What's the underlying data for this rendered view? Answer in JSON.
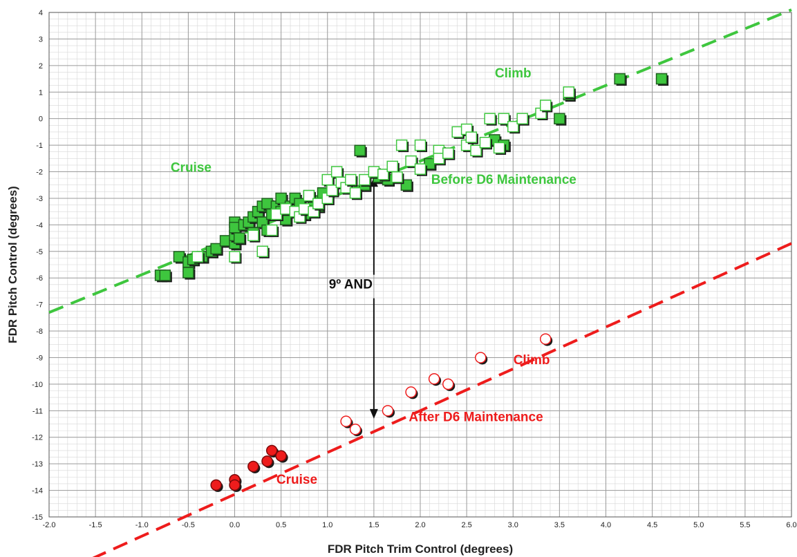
{
  "chart_data": {
    "type": "scatter",
    "title": "",
    "xlabel": "FDR Pitch Trim Control (degrees)",
    "ylabel": "FDR Pitch Control (degrees)",
    "xlim": [
      -2.0,
      6.0
    ],
    "ylim": [
      -15,
      4
    ],
    "x_major_step": 0.5,
    "x_minor_step": 0.1,
    "y_major_step": 1,
    "y_minor_step": 0.25,
    "x_tick_labels": [
      "-2.0",
      "-1.5",
      "-1.0",
      "-0.5",
      "0.0",
      "0.5",
      "1.0",
      "1.5",
      "2.0",
      "2.5",
      "3.0",
      "3.5",
      "4.0",
      "4.5",
      "5.0",
      "5.5",
      "6.0"
    ],
    "y_tick_labels": [
      "4",
      "3",
      "2",
      "1",
      "0",
      "-1",
      "-2",
      "-3",
      "-4",
      "-5",
      "-6",
      "-7",
      "-8",
      "-9",
      "-10",
      "-11",
      "-12",
      "-13",
      "-14",
      "-15"
    ],
    "grid": true,
    "colors": {
      "before": "#3ec63e",
      "before_dark": "#2e9e2e",
      "after": "#ee1c1c",
      "arrow": "#111111"
    },
    "series": [
      {
        "marker": "square",
        "color": "#3ec63e",
        "filled_points": [
          [
            -0.8,
            -5.9
          ],
          [
            -0.75,
            -5.9
          ],
          [
            -0.6,
            -5.2
          ],
          [
            -0.5,
            -5.4
          ],
          [
            -0.5,
            -5.8
          ],
          [
            -0.45,
            -5.3
          ],
          [
            -0.35,
            -5.2
          ],
          [
            -0.25,
            -5.0
          ],
          [
            -0.2,
            -4.9
          ],
          [
            -0.1,
            -4.6
          ],
          [
            0.0,
            -4.7
          ],
          [
            0.0,
            -4.4
          ],
          [
            0.0,
            -3.9
          ],
          [
            0.0,
            -4.1
          ],
          [
            0.05,
            -4.5
          ],
          [
            0.1,
            -4.0
          ],
          [
            0.15,
            -3.9
          ],
          [
            0.2,
            -3.7
          ],
          [
            0.2,
            -4.3
          ],
          [
            0.25,
            -3.5
          ],
          [
            0.3,
            -3.3
          ],
          [
            0.3,
            -3.9
          ],
          [
            0.35,
            -3.2
          ],
          [
            0.35,
            -4.2
          ],
          [
            0.4,
            -3.6
          ],
          [
            0.45,
            -3.3
          ],
          [
            0.5,
            -3.0
          ],
          [
            0.5,
            -3.5
          ],
          [
            0.55,
            -3.8
          ],
          [
            0.6,
            -3.3
          ],
          [
            0.65,
            -3.0
          ],
          [
            0.7,
            -3.2
          ],
          [
            0.75,
            -3.6
          ],
          [
            0.8,
            -2.9
          ],
          [
            0.85,
            -3.1
          ],
          [
            0.9,
            -3.3
          ],
          [
            0.95,
            -2.8
          ],
          [
            1.4,
            -2.5
          ],
          [
            1.55,
            -2.2
          ],
          [
            1.65,
            -2.3
          ],
          [
            1.85,
            -2.5
          ],
          [
            1.35,
            -1.2
          ],
          [
            2.1,
            -1.7
          ],
          [
            2.8,
            -0.8
          ],
          [
            2.9,
            -1.0
          ],
          [
            3.5,
            0.0
          ],
          [
            3.6,
            0.9
          ],
          [
            4.15,
            1.5
          ],
          [
            4.6,
            1.5
          ]
        ],
        "hollow_points": [
          [
            -0.4,
            -5.2
          ],
          [
            0.0,
            -5.2
          ],
          [
            0.2,
            -4.4
          ],
          [
            0.3,
            -5.0
          ],
          [
            0.4,
            -4.2
          ],
          [
            0.45,
            -3.6
          ],
          [
            0.55,
            -3.4
          ],
          [
            0.65,
            -3.5
          ],
          [
            0.7,
            -3.7
          ],
          [
            0.75,
            -3.4
          ],
          [
            0.8,
            -2.9
          ],
          [
            0.85,
            -3.5
          ],
          [
            0.9,
            -3.2
          ],
          [
            1.0,
            -3.0
          ],
          [
            1.0,
            -2.3
          ],
          [
            1.05,
            -2.7
          ],
          [
            1.1,
            -2.0
          ],
          [
            1.15,
            -2.4
          ],
          [
            1.2,
            -2.6
          ],
          [
            1.25,
            -2.3
          ],
          [
            1.3,
            -2.8
          ],
          [
            1.4,
            -2.3
          ],
          [
            1.5,
            -2.0
          ],
          [
            1.6,
            -2.1
          ],
          [
            1.7,
            -1.8
          ],
          [
            1.75,
            -2.2
          ],
          [
            1.8,
            -1.0
          ],
          [
            1.9,
            -1.6
          ],
          [
            2.0,
            -1.0
          ],
          [
            2.0,
            -1.9
          ],
          [
            2.2,
            -1.2
          ],
          [
            2.2,
            -1.5
          ],
          [
            2.3,
            -1.3
          ],
          [
            2.4,
            -0.5
          ],
          [
            2.5,
            -0.4
          ],
          [
            2.5,
            -1.0
          ],
          [
            2.55,
            -0.7
          ],
          [
            2.6,
            -1.2
          ],
          [
            2.7,
            -0.9
          ],
          [
            2.75,
            0.0
          ],
          [
            2.85,
            -1.1
          ],
          [
            2.9,
            0.0
          ],
          [
            3.0,
            -0.3
          ],
          [
            3.1,
            0.0
          ],
          [
            3.3,
            0.2
          ],
          [
            3.35,
            0.5
          ],
          [
            3.6,
            1.0
          ]
        ]
      },
      {
        "marker": "circle",
        "color": "#ee1c1c",
        "filled_points": [
          [
            -0.2,
            -13.8
          ],
          [
            0.0,
            -13.6
          ],
          [
            0.0,
            -13.8
          ],
          [
            0.2,
            -13.1
          ],
          [
            0.35,
            -12.9
          ],
          [
            0.4,
            -12.5
          ],
          [
            0.5,
            -12.7
          ]
        ],
        "hollow_points": [
          [
            1.2,
            -11.4
          ],
          [
            1.3,
            -11.7
          ],
          [
            1.65,
            -11.0
          ],
          [
            1.9,
            -10.3
          ],
          [
            2.15,
            -9.8
          ],
          [
            2.3,
            -10.0
          ],
          [
            2.65,
            -9.0
          ],
          [
            3.35,
            -8.3
          ]
        ]
      }
    ],
    "trend_lines": [
      {
        "color": "#3ec63e",
        "from": [
          -2.0,
          -7.3
        ],
        "to": [
          6.0,
          4.1
        ]
      },
      {
        "color": "#ee1c1c",
        "from": [
          -2.0,
          -17.3
        ],
        "to": [
          6.0,
          -4.7
        ]
      }
    ],
    "annotations": [
      {
        "text": "Climb",
        "x": 3.0,
        "y": 1.55,
        "color": "#3ec63e"
      },
      {
        "text": "Cruise",
        "x": -0.47,
        "y": -2.0,
        "color": "#3ec63e"
      },
      {
        "text": "Before D6 Maintenance",
        "x": 2.9,
        "y": -2.45,
        "color": "#3ec63e"
      },
      {
        "text": "9º AND",
        "x": 1.25,
        "y": -6.4,
        "color": "#111111"
      },
      {
        "text": "Climb",
        "x": 3.2,
        "y": -9.25,
        "color": "#ee1c1c"
      },
      {
        "text": "After D6 Maintenance",
        "x": 2.6,
        "y": -11.4,
        "color": "#ee1c1c"
      },
      {
        "text": "Cruise",
        "x": 0.67,
        "y": -13.75,
        "color": "#ee1c1c"
      }
    ],
    "arrow": {
      "x": 1.5,
      "y_from": -2.2,
      "y_to": -11.3
    }
  }
}
